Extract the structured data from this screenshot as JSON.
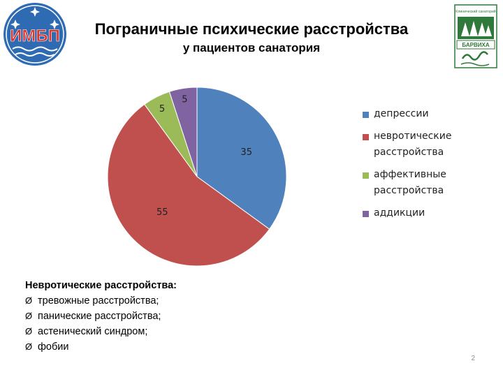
{
  "slide": {
    "title": "Пограничные психические расстройства",
    "subtitle": "у пациентов санатория",
    "page_number": "2"
  },
  "logos": {
    "left": {
      "text": "ИМБП",
      "color": "#2e6bb3",
      "icon": "imbp-logo"
    },
    "right": {
      "top_text": "Клинический санаторий",
      "bottom_text": "БАРВИХА",
      "color": "#2f7a3a",
      "icon": "barvikha-logo"
    }
  },
  "chart_data": {
    "type": "pie",
    "title": "",
    "slices": [
      {
        "label": "депрессии",
        "value": 35,
        "color": "#4f81bd"
      },
      {
        "label": "невротические расстройства",
        "value": 55,
        "color": "#c0504d"
      },
      {
        "label": "аффективные расстройства",
        "value": 5,
        "color": "#9bbb59"
      },
      {
        "label": "аддикции",
        "value": 5,
        "color": "#8064a2"
      }
    ],
    "legend_position": "right",
    "legend": [
      {
        "lines": [
          "депрессии"
        ],
        "color": "#4f81bd"
      },
      {
        "lines": [
          "невротические",
          "расстройства"
        ],
        "color": "#c0504d"
      },
      {
        "lines": [
          "аффективные",
          "расстройства"
        ],
        "color": "#9bbb59"
      },
      {
        "lines": [
          "аддикции"
        ],
        "color": "#8064a2"
      }
    ]
  },
  "notes": {
    "title": "Невротические расстройства:",
    "bullet": "Ø",
    "items": [
      "тревожные расстройства;",
      "панические расстройства;",
      "астенический синдром;",
      "фобии"
    ]
  }
}
